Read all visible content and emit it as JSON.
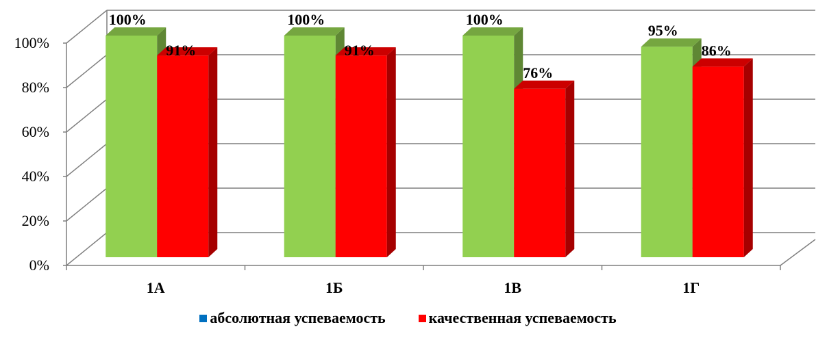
{
  "chart_data": {
    "type": "bar",
    "categories": [
      "1А",
      "1Б",
      "1В",
      "1Г"
    ],
    "series": [
      {
        "name": "абсолютная успеваемость",
        "values": [
          100,
          100,
          100,
          95
        ],
        "labels": [
          "100%",
          "100%",
          "100%",
          "95%"
        ],
        "color": "#92D050",
        "legend_color": "#0070C0"
      },
      {
        "name": "качественная успеваемость",
        "values": [
          91,
          91,
          76,
          86
        ],
        "labels": [
          "91%",
          "91%",
          "76%",
          "86%"
        ],
        "color": "#FF0000",
        "legend_color": "#FF0000"
      }
    ],
    "ylim": [
      0,
      100
    ],
    "yticks": [
      "0%",
      "20%",
      "40%",
      "60%",
      "80%",
      "100%"
    ],
    "grid": true,
    "style": "3d-clustered-column",
    "legend_position": "bottom"
  }
}
